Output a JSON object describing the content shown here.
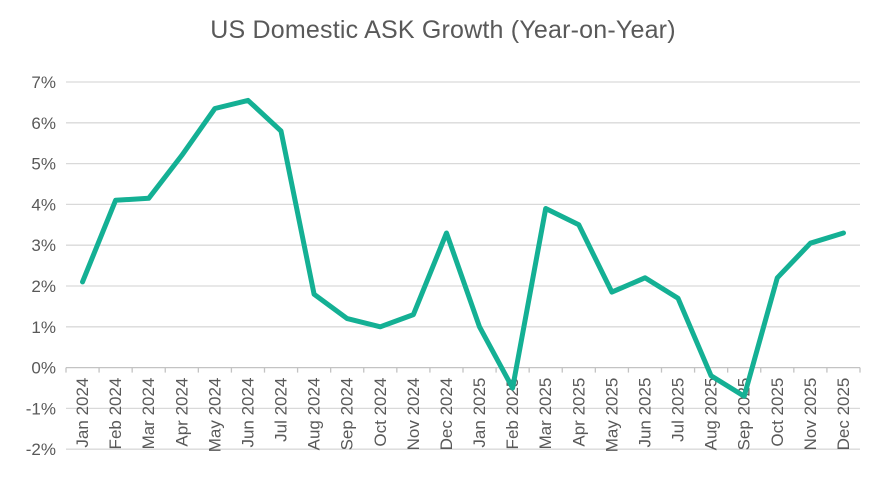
{
  "chart_data": {
    "type": "line",
    "title": "US Domestic ASK Growth (Year-on-Year)",
    "categories": [
      "Jan 2024",
      "Feb 2024",
      "Mar 2024",
      "Apr 2024",
      "May 2024",
      "Jun 2024",
      "Jul 2024",
      "Aug 2024",
      "Sep 2024",
      "Oct 2024",
      "Nov 2024",
      "Dec 2024",
      "Jan 2025",
      "Feb 2025",
      "Mar 2025",
      "Apr 2025",
      "May 2025",
      "Jun 2025",
      "Jul 2025",
      "Aug 2025",
      "Sep 2025",
      "Oct 2025",
      "Nov 2025",
      "Dec 2025"
    ],
    "series": [
      {
        "name": "US Domestic ASK Growth (Year-on-Year)",
        "values": [
          2.1,
          4.1,
          4.15,
          5.2,
          6.35,
          6.55,
          5.8,
          1.8,
          1.2,
          1.0,
          1.3,
          3.3,
          1.0,
          -0.5,
          3.9,
          3.5,
          1.85,
          2.2,
          1.7,
          -0.2,
          -0.7,
          2.2,
          3.05,
          3.3
        ]
      }
    ],
    "xlabel": "",
    "ylabel": "",
    "ylim": [
      -2,
      7
    ],
    "ytick_step": 1,
    "ytick_suffix": "%",
    "ytick_labels": [
      "7%",
      "6%",
      "5%",
      "4%",
      "3%",
      "2%",
      "1%",
      "0%",
      "-1%",
      "-2%"
    ],
    "grid": "horizontal",
    "legend_position": "none",
    "colors": {
      "line": "#14b094",
      "grid": "#d9d9d9",
      "axis": "#c3c3c3",
      "text": "#595959",
      "background": "#ffffff"
    }
  }
}
